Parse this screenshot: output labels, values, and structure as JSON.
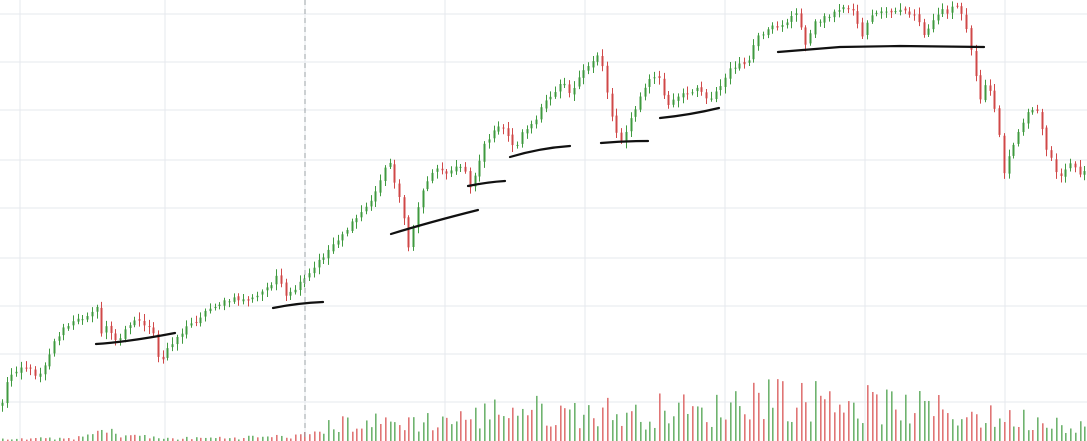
{
  "chart_data": {
    "type": "candlestick",
    "y_scale": "linear",
    "grid": true,
    "legend": "none",
    "colors": {
      "up": "#3f9a3f",
      "down": "#d04848",
      "drawing": "#111111",
      "grid": "#e6e9ee",
      "crosshair": "#9aa0a6"
    },
    "n_bars": 230,
    "price_path": [
      [
        0,
        410
      ],
      [
        8,
        378
      ],
      [
        15,
        370
      ],
      [
        22,
        366
      ],
      [
        30,
        370
      ],
      [
        38,
        376
      ],
      [
        46,
        361
      ],
      [
        54,
        342
      ],
      [
        62,
        330
      ],
      [
        72,
        323
      ],
      [
        82,
        318
      ],
      [
        90,
        312
      ],
      [
        96,
        306
      ],
      [
        101,
        334
      ],
      [
        106,
        325
      ],
      [
        112,
        336
      ],
      [
        118,
        345
      ],
      [
        124,
        328
      ],
      [
        130,
        323
      ],
      [
        136,
        320
      ],
      [
        142,
        322
      ],
      [
        148,
        328
      ],
      [
        154,
        336
      ],
      [
        158,
        358
      ],
      [
        162,
        362
      ],
      [
        166,
        350
      ],
      [
        172,
        342
      ],
      [
        180,
        334
      ],
      [
        188,
        326
      ],
      [
        196,
        320
      ],
      [
        205,
        312
      ],
      [
        215,
        305
      ],
      [
        225,
        302
      ],
      [
        235,
        299
      ],
      [
        245,
        300
      ],
      [
        252,
        299
      ],
      [
        258,
        296
      ],
      [
        264,
        290
      ],
      [
        270,
        285
      ],
      [
        276,
        276
      ],
      [
        280,
        283
      ],
      [
        284,
        298
      ],
      [
        290,
        294
      ],
      [
        298,
        286
      ],
      [
        306,
        278
      ],
      [
        312,
        271
      ],
      [
        318,
        262
      ],
      [
        325,
        254
      ],
      [
        332,
        245
      ],
      [
        340,
        236
      ],
      [
        350,
        226
      ],
      [
        358,
        216
      ],
      [
        365,
        208
      ],
      [
        372,
        198
      ],
      [
        378,
        188
      ],
      [
        384,
        166
      ],
      [
        389,
        162
      ],
      [
        393,
        180
      ],
      [
        398,
        190
      ],
      [
        402,
        210
      ],
      [
        406,
        228
      ],
      [
        408,
        252
      ],
      [
        412,
        232
      ],
      [
        416,
        214
      ],
      [
        420,
        198
      ],
      [
        426,
        182
      ],
      [
        432,
        172
      ],
      [
        440,
        168
      ],
      [
        448,
        172
      ],
      [
        456,
        168
      ],
      [
        462,
        166
      ],
      [
        466,
        172
      ],
      [
        470,
        186
      ],
      [
        476,
        172
      ],
      [
        482,
        150
      ],
      [
        488,
        138
      ],
      [
        494,
        132
      ],
      [
        500,
        126
      ],
      [
        506,
        130
      ],
      [
        512,
        146
      ],
      [
        516,
        146
      ],
      [
        520,
        136
      ],
      [
        526,
        128
      ],
      [
        532,
        124
      ],
      [
        538,
        118
      ],
      [
        542,
        106
      ],
      [
        548,
        98
      ],
      [
        554,
        92
      ],
      [
        560,
        82
      ],
      [
        564,
        80
      ],
      [
        568,
        94
      ],
      [
        574,
        86
      ],
      [
        580,
        76
      ],
      [
        586,
        70
      ],
      [
        592,
        62
      ],
      [
        598,
        54
      ],
      [
        602,
        64
      ],
      [
        606,
        86
      ],
      [
        610,
        110
      ],
      [
        614,
        126
      ],
      [
        618,
        136
      ],
      [
        622,
        140
      ],
      [
        628,
        126
      ],
      [
        634,
        112
      ],
      [
        640,
        98
      ],
      [
        646,
        84
      ],
      [
        652,
        76
      ],
      [
        656,
        80
      ],
      [
        660,
        76
      ],
      [
        664,
        98
      ],
      [
        668,
        106
      ],
      [
        674,
        100
      ],
      [
        680,
        96
      ],
      [
        686,
        94
      ],
      [
        692,
        90
      ],
      [
        698,
        86
      ],
      [
        704,
        96
      ],
      [
        710,
        98
      ],
      [
        716,
        92
      ],
      [
        722,
        84
      ],
      [
        728,
        72
      ],
      [
        734,
        66
      ],
      [
        740,
        64
      ],
      [
        746,
        68
      ],
      [
        752,
        50
      ],
      [
        756,
        38
      ],
      [
        764,
        36
      ],
      [
        770,
        28
      ],
      [
        778,
        26
      ],
      [
        786,
        22
      ],
      [
        792,
        16
      ],
      [
        798,
        14
      ],
      [
        804,
        44
      ],
      [
        808,
        40
      ],
      [
        814,
        24
      ],
      [
        822,
        18
      ],
      [
        830,
        14
      ],
      [
        838,
        12
      ],
      [
        846,
        4
      ],
      [
        852,
        10
      ],
      [
        858,
        24
      ],
      [
        862,
        38
      ],
      [
        866,
        22
      ],
      [
        872,
        16
      ],
      [
        880,
        10
      ],
      [
        888,
        12
      ],
      [
        896,
        10
      ],
      [
        904,
        12
      ],
      [
        912,
        14
      ],
      [
        918,
        22
      ],
      [
        924,
        36
      ],
      [
        930,
        26
      ],
      [
        936,
        16
      ],
      [
        942,
        8
      ],
      [
        948,
        14
      ],
      [
        954,
        4
      ],
      [
        960,
        10
      ],
      [
        966,
        28
      ],
      [
        972,
        56
      ],
      [
        976,
        76
      ],
      [
        980,
        98
      ],
      [
        986,
        82
      ],
      [
        990,
        92
      ],
      [
        996,
        112
      ],
      [
        1000,
        142
      ],
      [
        1004,
        176
      ],
      [
        1008,
        158
      ],
      [
        1012,
        150
      ],
      [
        1018,
        130
      ],
      [
        1024,
        118
      ],
      [
        1030,
        112
      ],
      [
        1036,
        108
      ],
      [
        1040,
        122
      ],
      [
        1044,
        142
      ],
      [
        1050,
        156
      ],
      [
        1056,
        170
      ],
      [
        1060,
        176
      ],
      [
        1066,
        166
      ],
      [
        1072,
        160
      ],
      [
        1078,
        176
      ],
      [
        1082,
        170
      ],
      [
        1087,
        168
      ]
    ],
    "volume_profile": [
      [
        0,
        0.02
      ],
      [
        80,
        0.04
      ],
      [
        100,
        0.12
      ],
      [
        160,
        0.03
      ],
      [
        220,
        0.04
      ],
      [
        300,
        0.06
      ],
      [
        340,
        0.22
      ],
      [
        420,
        0.24
      ],
      [
        480,
        0.3
      ],
      [
        500,
        0.42
      ],
      [
        560,
        0.34
      ],
      [
        600,
        0.38
      ],
      [
        640,
        0.3
      ],
      [
        670,
        0.44
      ],
      [
        700,
        0.32
      ],
      [
        740,
        0.5
      ],
      [
        770,
        0.62
      ],
      [
        800,
        0.48
      ],
      [
        830,
        0.58
      ],
      [
        860,
        0.46
      ],
      [
        900,
        0.42
      ],
      [
        940,
        0.38
      ],
      [
        980,
        0.3
      ],
      [
        1040,
        0.26
      ],
      [
        1087,
        0.2
      ]
    ],
    "drawings": [
      {
        "type": "support-line",
        "points": [
          [
            96,
            344
          ],
          [
            128,
            342
          ],
          [
            175,
            333
          ]
        ]
      },
      {
        "type": "support-line",
        "points": [
          [
            273,
            308
          ],
          [
            298,
            303
          ],
          [
            323,
            302
          ]
        ]
      },
      {
        "type": "support-line",
        "points": [
          [
            391,
            234
          ],
          [
            430,
            222
          ],
          [
            478,
            210
          ]
        ]
      },
      {
        "type": "support-line",
        "points": [
          [
            468,
            186
          ],
          [
            488,
            182
          ],
          [
            505,
            181
          ]
        ]
      },
      {
        "type": "support-line",
        "points": [
          [
            510,
            157
          ],
          [
            540,
            148
          ],
          [
            570,
            146
          ]
        ]
      },
      {
        "type": "support-line",
        "points": [
          [
            601,
            143
          ],
          [
            625,
            141
          ],
          [
            648,
            141
          ]
        ]
      },
      {
        "type": "support-line",
        "points": [
          [
            660,
            118
          ],
          [
            690,
            115
          ],
          [
            719,
            108
          ]
        ]
      },
      {
        "type": "support-line",
        "points": [
          [
            778,
            52
          ],
          [
            840,
            47
          ],
          [
            900,
            46
          ],
          [
            984,
            47
          ]
        ]
      }
    ],
    "crosshair_x": 305
  }
}
